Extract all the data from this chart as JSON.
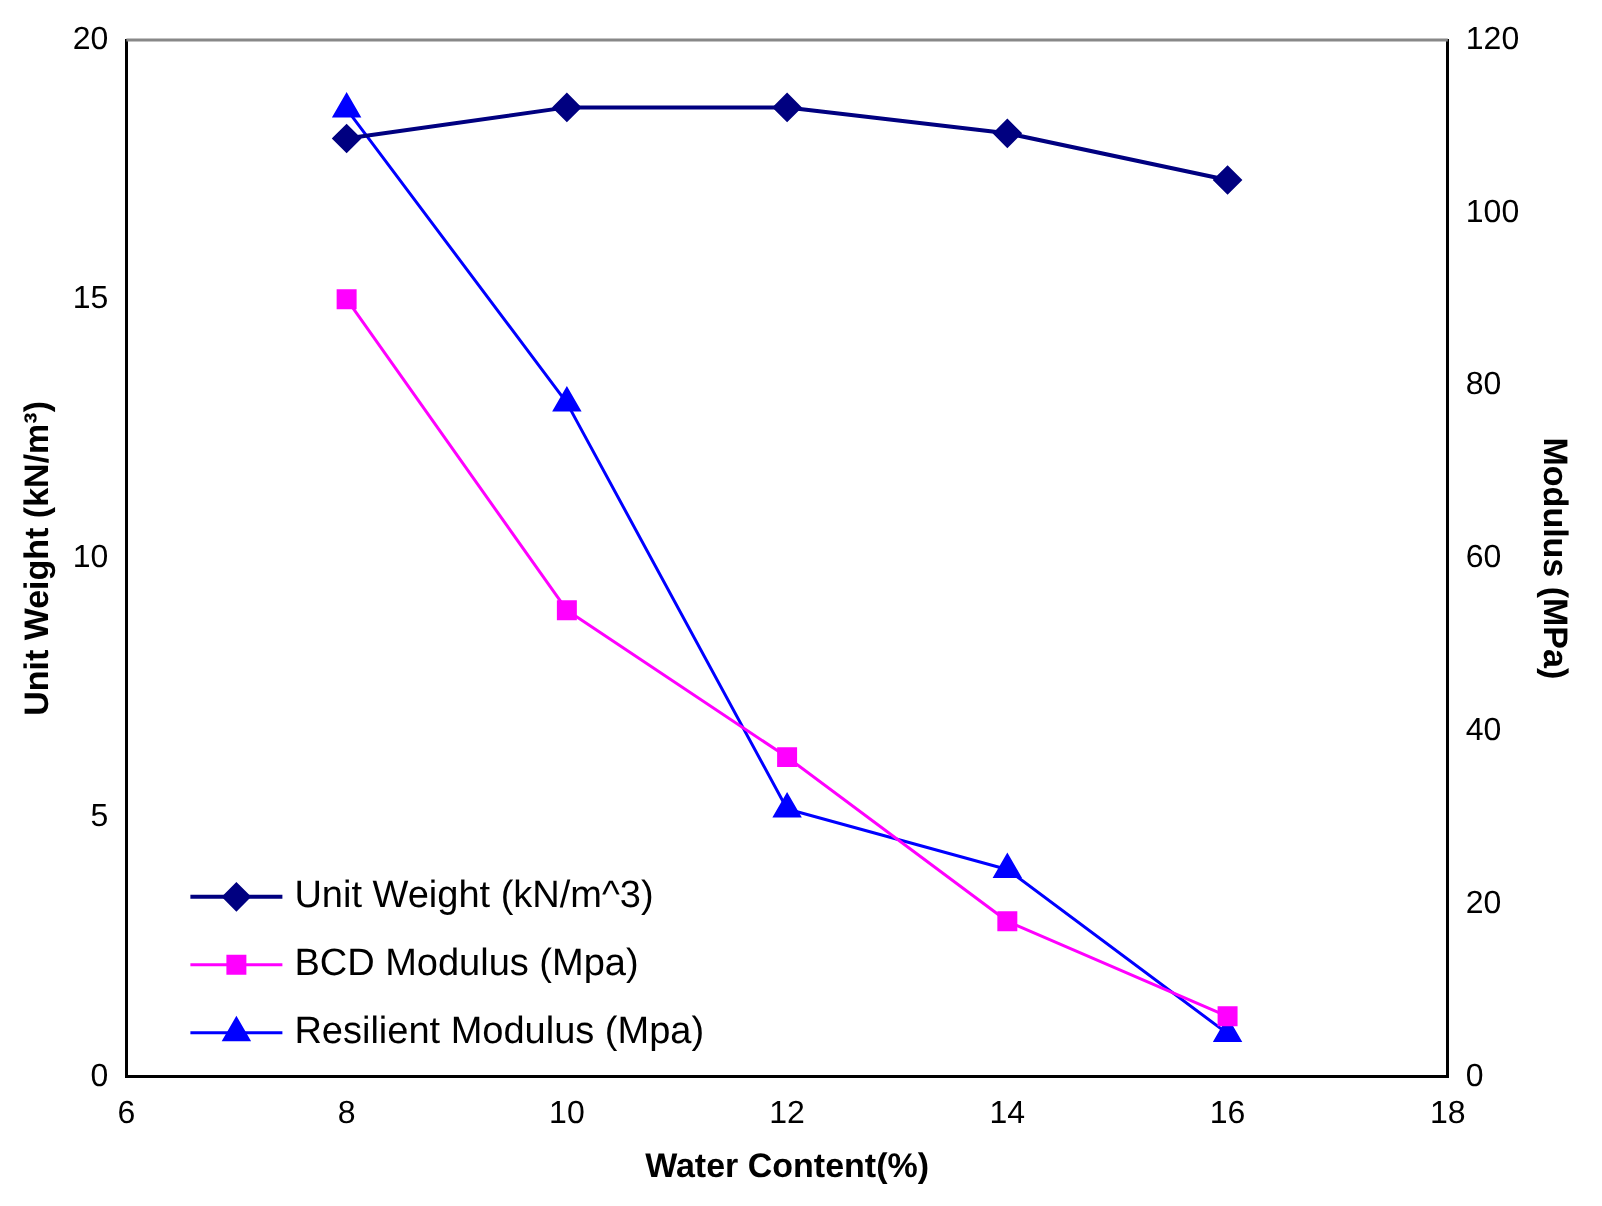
{
  "chart_data": {
    "type": "line",
    "xlabel": "Water Content(%)",
    "ylabel": "Unit Weight (kN/m³)",
    "y2label": "Modulus (MPa)",
    "x": [
      8,
      10,
      12,
      14,
      16
    ],
    "series": [
      {
        "name": "Unit Weight (kN/m^3)",
        "color": "#000080",
        "marker": "diamond",
        "values": [
          18.1,
          18.7,
          18.7,
          18.2,
          17.3
        ]
      },
      {
        "name": "BCD Modulus (Mpa)",
        "color": "#ff00ff",
        "marker": "square",
        "axis": "y2",
        "values": [
          90,
          54,
          37,
          18,
          7
        ]
      },
      {
        "name": "Resilient Modulus (Mpa)",
        "color": "#0000ff",
        "marker": "triangle",
        "axis": "y2",
        "values": [
          112,
          78,
          31,
          24,
          5
        ]
      }
    ],
    "xlim": [
      6,
      18
    ],
    "xticks": [
      6,
      8,
      10,
      12,
      14,
      16,
      18
    ],
    "ylim": [
      0,
      20
    ],
    "yticks": [
      0,
      5,
      10,
      15,
      20
    ],
    "y2lim": [
      0,
      120
    ],
    "y2ticks": [
      0,
      20,
      40,
      60,
      80,
      100,
      120
    ],
    "grid": false,
    "legend": "bottom left"
  }
}
